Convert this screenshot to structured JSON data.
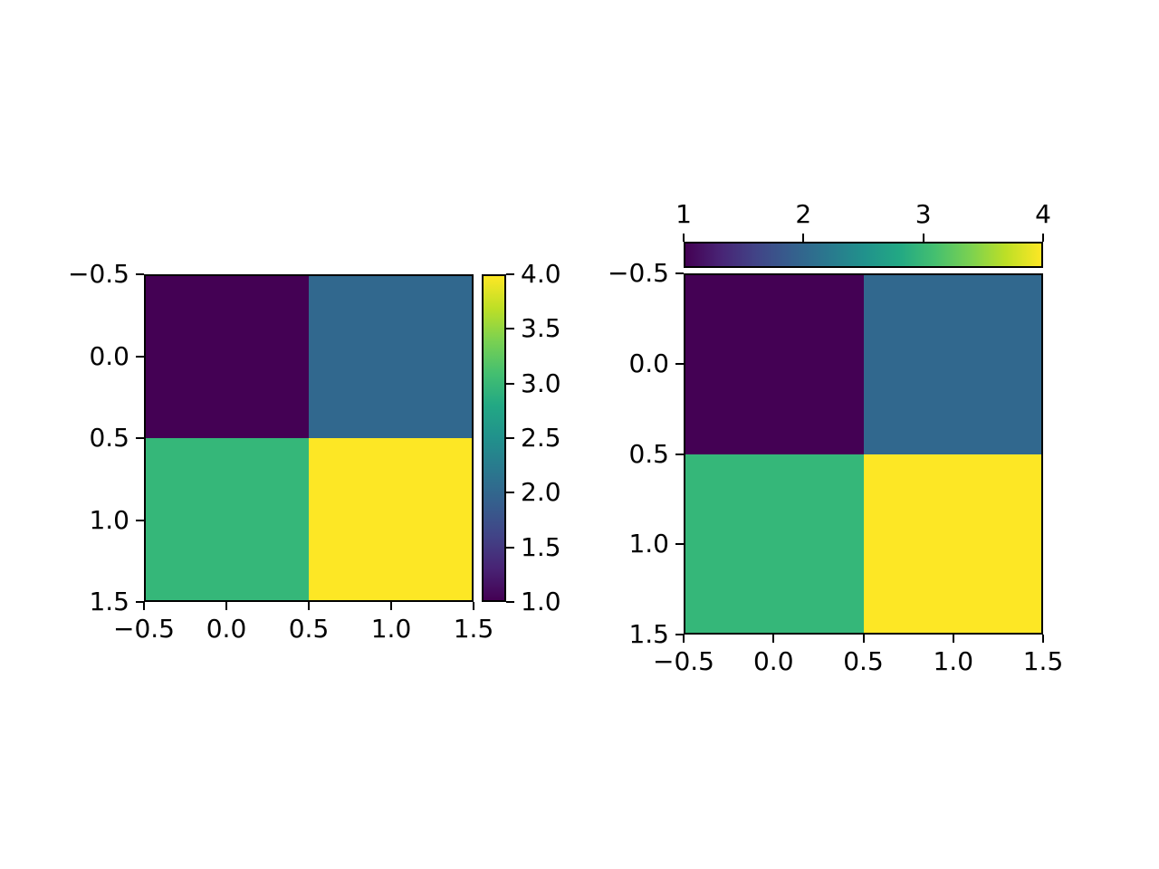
{
  "figure": {
    "background_color": "#ffffff",
    "text_color": "#000000",
    "spine_color": "#000000"
  },
  "viridis_stops": [
    "#440154",
    "#482475",
    "#414487",
    "#355f8d",
    "#2a788e",
    "#21918c",
    "#22a884",
    "#44bf70",
    "#7ad151",
    "#bddf26",
    "#fde725"
  ],
  "chart_data": [
    {
      "type": "heatmap",
      "title": "",
      "xlabel": "",
      "ylabel": "",
      "matrix": [
        [
          1,
          2
        ],
        [
          3,
          4
        ]
      ],
      "vmin": 1,
      "vmax": 4,
      "colormap": "viridis",
      "xlim": [
        -0.5,
        1.5
      ],
      "ylim_top_to_bottom": [
        -0.5,
        1.5
      ],
      "x_tick_labels": [
        "−0.5",
        "0.0",
        "0.5",
        "1.0",
        "1.5"
      ],
      "y_tick_labels": [
        "−0.5",
        "0.0",
        "0.5",
        "1.0",
        "1.5"
      ],
      "cell_colors": [
        [
          "#440154",
          "#31688e"
        ],
        [
          "#35b779",
          "#fde725"
        ]
      ],
      "grid": false,
      "colorbar": {
        "orientation": "vertical",
        "position": "right",
        "min_label_end": "bottom",
        "tick_labels_top_to_bottom": [
          "4.0",
          "3.5",
          "3.0",
          "2.5",
          "2.0",
          "1.5",
          "1.0"
        ]
      }
    },
    {
      "type": "heatmap",
      "title": "",
      "xlabel": "",
      "ylabel": "",
      "matrix": [
        [
          1,
          2
        ],
        [
          3,
          4
        ]
      ],
      "vmin": 1,
      "vmax": 4,
      "colormap": "viridis",
      "xlim": [
        -0.5,
        1.5
      ],
      "ylim_top_to_bottom": [
        -0.5,
        1.5
      ],
      "x_tick_labels": [
        "−0.5",
        "0.0",
        "0.5",
        "1.0",
        "1.5"
      ],
      "y_tick_labels": [
        "−0.5",
        "0.0",
        "0.5",
        "1.0",
        "1.5"
      ],
      "cell_colors": [
        [
          "#440154",
          "#31688e"
        ],
        [
          "#35b779",
          "#fde725"
        ]
      ],
      "grid": false,
      "colorbar": {
        "orientation": "horizontal",
        "position": "top",
        "min_label_end": "left",
        "tick_labels_left_to_right": [
          "1",
          "2",
          "3",
          "4"
        ]
      }
    }
  ]
}
